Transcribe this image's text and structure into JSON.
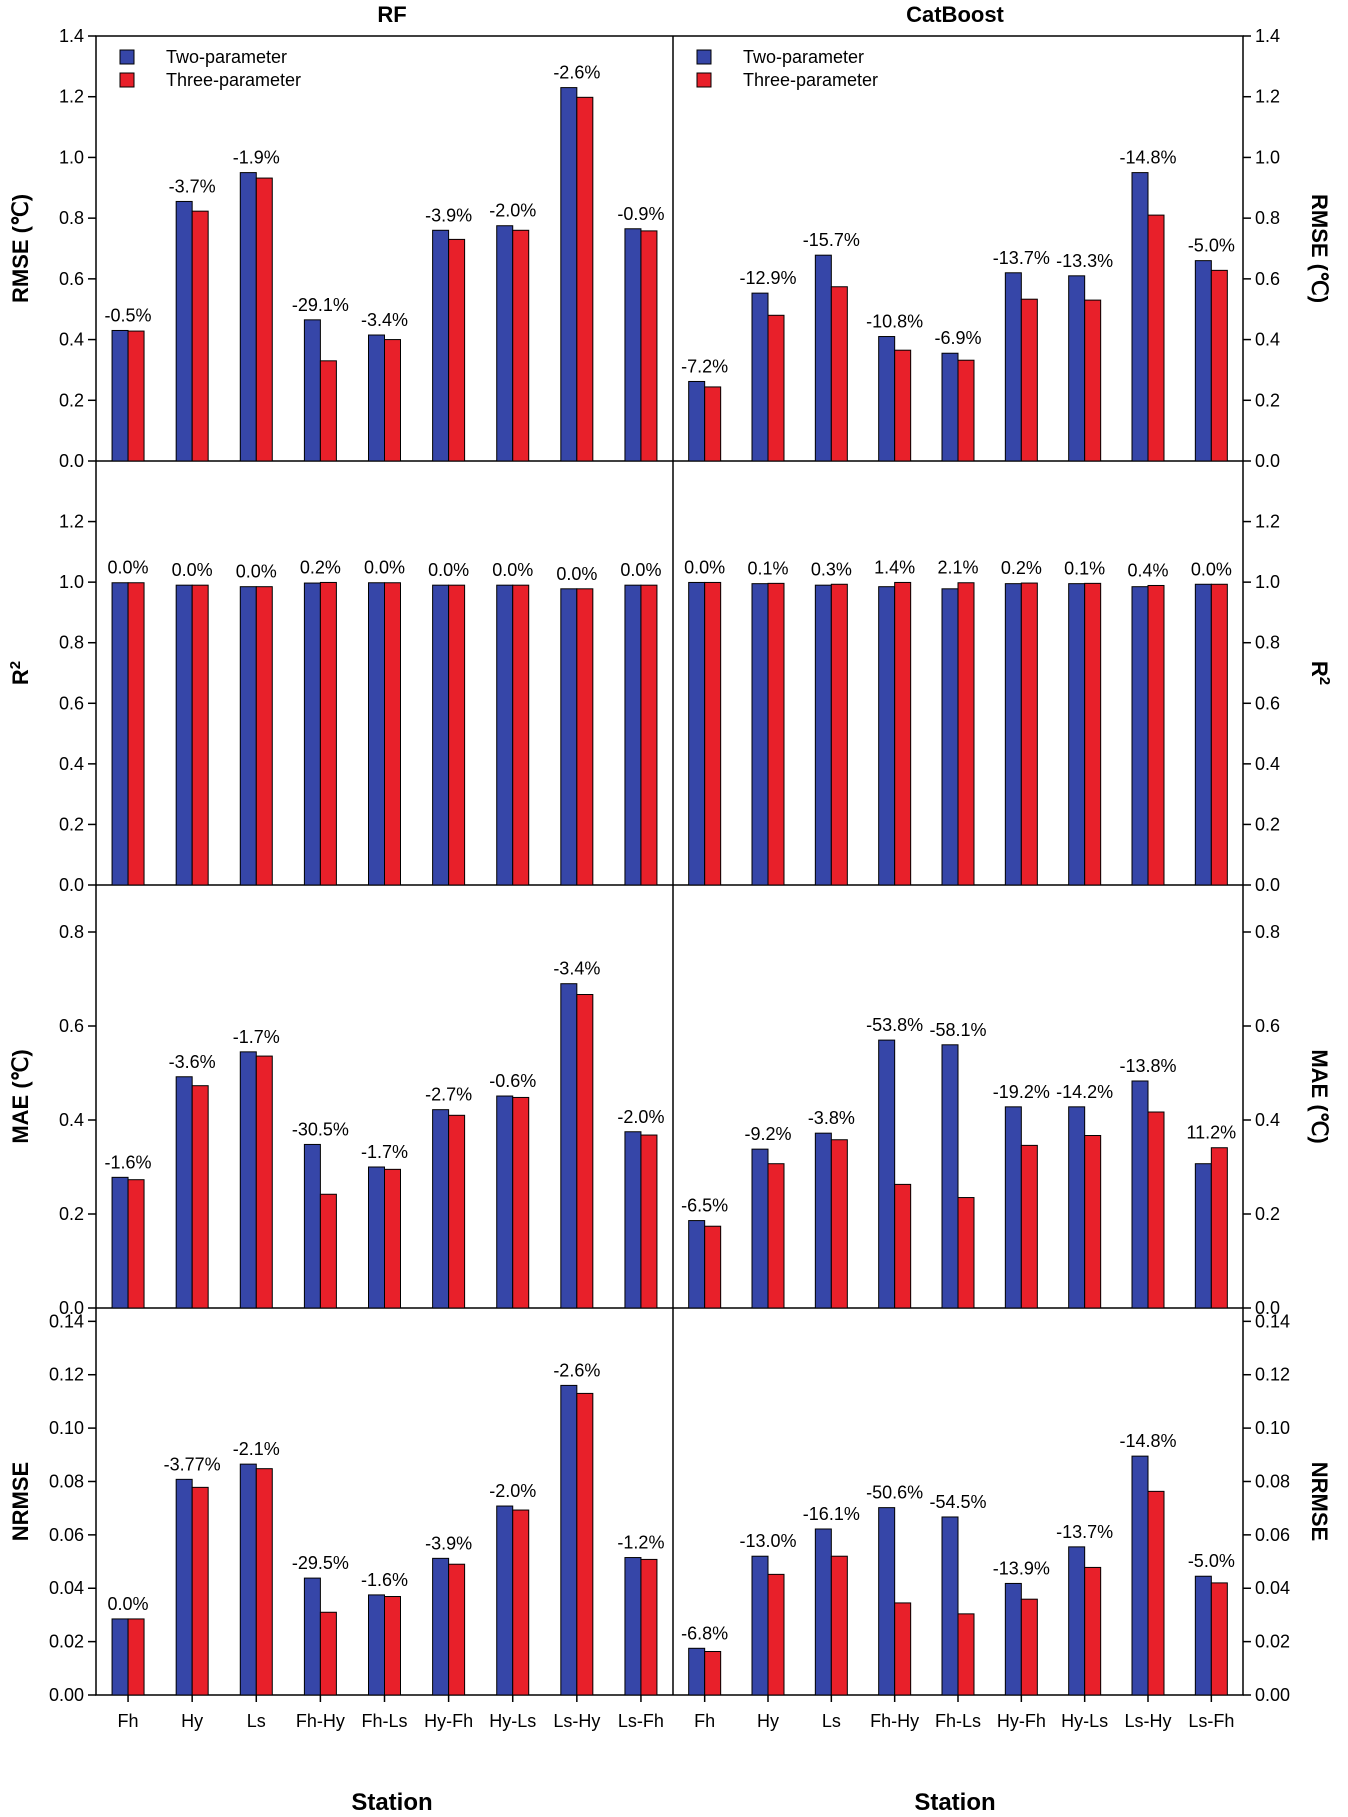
{
  "colors": {
    "two_param": "#3646a8",
    "three_param": "#e8202a",
    "bar_edge": "#000000"
  },
  "panel_titles": [
    "RF",
    "CatBoost"
  ],
  "x_title": "Station",
  "legend": [
    "Two-parameter",
    "Three-parameter"
  ],
  "chart_data": [
    {
      "type": "bar",
      "model": "RF",
      "ylabel": "RMSE (℃)",
      "ylim": [
        0,
        1.4
      ],
      "yticks": [
        "0.0",
        "0.2",
        "0.4",
        "0.6",
        "0.8",
        "1.0",
        "1.2",
        "1.4"
      ],
      "categories": [
        "Fh",
        "Hy",
        "Ls",
        "Fh-Hy",
        "Fh-Ls",
        "Hy-Fh",
        "Hy-Ls",
        "Ls-Hy",
        "Ls-Fh"
      ],
      "series": [
        {
          "name": "Two-parameter",
          "values": [
            0.43,
            0.855,
            0.95,
            0.465,
            0.415,
            0.76,
            0.775,
            1.23,
            0.765
          ]
        },
        {
          "name": "Three-parameter",
          "values": [
            0.428,
            0.823,
            0.932,
            0.33,
            0.4,
            0.73,
            0.76,
            1.198,
            0.758
          ]
        }
      ],
      "labels": [
        "-0.5%",
        "-3.7%",
        "-1.9%",
        "-29.1%",
        "-3.4%",
        "-3.9%",
        "-2.0%",
        "-2.6%",
        "-0.9%"
      ],
      "legend": "top-left"
    },
    {
      "type": "bar",
      "model": "CatBoost",
      "ylabel": "RMSE (℃)",
      "ylim": [
        0,
        1.4
      ],
      "yticks": [
        "0.0",
        "0.2",
        "0.4",
        "0.6",
        "0.8",
        "1.0",
        "1.2",
        "1.4"
      ],
      "categories": [
        "Fh",
        "Hy",
        "Ls",
        "Fh-Hy",
        "Fh-Ls",
        "Hy-Fh",
        "Hy-Ls",
        "Ls-Hy",
        "Ls-Fh"
      ],
      "series": [
        {
          "name": "Two-parameter",
          "values": [
            0.262,
            0.553,
            0.678,
            0.41,
            0.355,
            0.62,
            0.61,
            0.95,
            0.66
          ]
        },
        {
          "name": "Three-parameter",
          "values": [
            0.244,
            0.48,
            0.574,
            0.365,
            0.332,
            0.533,
            0.53,
            0.81,
            0.628
          ]
        }
      ],
      "labels": [
        "-7.2%",
        "-12.9%",
        "-15.7%",
        "-10.8%",
        "-6.9%",
        "-13.7%",
        "-13.3%",
        "-14.8%",
        "-5.0%"
      ],
      "legend": "top-left"
    },
    {
      "type": "bar",
      "model": "RF",
      "ylabel": "R2",
      "ylim": [
        0,
        1.4
      ],
      "yticks": [
        "0.0",
        "0.2",
        "0.4",
        "0.6",
        "0.8",
        "1.0",
        "1.2"
      ],
      "categories": [
        "Fh",
        "Hy",
        "Ls",
        "Fh-Hy",
        "Fh-Ls",
        "Hy-Fh",
        "Hy-Ls",
        "Ls-Hy",
        "Ls-Fh"
      ],
      "series": [
        {
          "name": "Two-parameter",
          "values": [
            0.998,
            0.99,
            0.985,
            0.997,
            0.998,
            0.99,
            0.99,
            0.978,
            0.99
          ]
        },
        {
          "name": "Three-parameter",
          "values": [
            0.998,
            0.99,
            0.985,
            0.999,
            0.998,
            0.99,
            0.99,
            0.978,
            0.99
          ]
        }
      ],
      "labels": [
        "0.0%",
        "0.0%",
        "0.0%",
        "0.2%",
        "0.0%",
        "0.0%",
        "0.0%",
        "0.0%",
        "0.0%"
      ]
    },
    {
      "type": "bar",
      "model": "CatBoost",
      "ylabel": "R2",
      "ylim": [
        0,
        1.4
      ],
      "yticks": [
        "0.0",
        "0.2",
        "0.4",
        "0.6",
        "0.8",
        "1.0",
        "1.2"
      ],
      "categories": [
        "Fh",
        "Hy",
        "Ls",
        "Fh-Hy",
        "Fh-Ls",
        "Hy-Fh",
        "Hy-Ls",
        "Ls-Hy",
        "Ls-Fh"
      ],
      "series": [
        {
          "name": "Two-parameter",
          "values": [
            0.999,
            0.995,
            0.99,
            0.985,
            0.978,
            0.995,
            0.995,
            0.985,
            0.993
          ]
        },
        {
          "name": "Three-parameter",
          "values": [
            0.999,
            0.996,
            0.993,
            0.999,
            0.998,
            0.997,
            0.996,
            0.989,
            0.993
          ]
        }
      ],
      "labels": [
        "0.0%",
        "0.1%",
        "0.3%",
        "1.4%",
        "2.1%",
        "0.2%",
        "0.1%",
        "0.4%",
        "0.0%"
      ]
    },
    {
      "type": "bar",
      "model": "RF",
      "ylabel": "MAE (℃)",
      "ylim": [
        0,
        0.9
      ],
      "yticks": [
        "0.0",
        "0.2",
        "0.4",
        "0.6",
        "0.8"
      ],
      "categories": [
        "Fh",
        "Hy",
        "Ls",
        "Fh-Hy",
        "Fh-Ls",
        "Hy-Fh",
        "Hy-Ls",
        "Ls-Hy",
        "Ls-Fh"
      ],
      "series": [
        {
          "name": "Two-parameter",
          "values": [
            0.278,
            0.492,
            0.545,
            0.348,
            0.3,
            0.422,
            0.451,
            0.69,
            0.375
          ]
        },
        {
          "name": "Three-parameter",
          "values": [
            0.273,
            0.473,
            0.536,
            0.242,
            0.295,
            0.41,
            0.448,
            0.667,
            0.368
          ]
        }
      ],
      "labels": [
        "-1.6%",
        "-3.6%",
        "-1.7%",
        "-30.5%",
        "-1.7%",
        "-2.7%",
        "-0.6%",
        "-3.4%",
        "-2.0%"
      ]
    },
    {
      "type": "bar",
      "model": "CatBoost",
      "ylabel": "MAE (℃)",
      "ylim": [
        0,
        0.9
      ],
      "yticks": [
        "0.0",
        "0.2",
        "0.4",
        "0.6",
        "0.8"
      ],
      "categories": [
        "Fh",
        "Hy",
        "Ls",
        "Fh-Hy",
        "Fh-Ls",
        "Hy-Fh",
        "Hy-Ls",
        "Ls-Hy",
        "Ls-Fh"
      ],
      "series": [
        {
          "name": "Two-parameter",
          "values": [
            0.186,
            0.338,
            0.372,
            0.57,
            0.56,
            0.428,
            0.428,
            0.483,
            0.307
          ]
        },
        {
          "name": "Three-parameter",
          "values": [
            0.174,
            0.307,
            0.358,
            0.263,
            0.235,
            0.346,
            0.367,
            0.417,
            0.341
          ]
        }
      ],
      "labels": [
        "-6.5%",
        "-9.2%",
        "-3.8%",
        "-53.8%",
        "-58.1%",
        "-19.2%",
        "-14.2%",
        "-13.8%",
        "11.2%"
      ]
    },
    {
      "type": "bar",
      "model": "RF",
      "ylabel": "NRMSE",
      "ylim": [
        0,
        0.145
      ],
      "yticks": [
        "0.00",
        "0.02",
        "0.04",
        "0.06",
        "0.08",
        "0.10",
        "0.12",
        "0.14"
      ],
      "categories": [
        "Fh",
        "Hy",
        "Ls",
        "Fh-Hy",
        "Fh-Ls",
        "Hy-Fh",
        "Hy-Ls",
        "Ls-Hy",
        "Ls-Fh"
      ],
      "series": [
        {
          "name": "Two-parameter",
          "values": [
            0.0285,
            0.0808,
            0.0865,
            0.0438,
            0.0375,
            0.0512,
            0.0708,
            0.116,
            0.0515
          ]
        },
        {
          "name": "Three-parameter",
          "values": [
            0.0285,
            0.0778,
            0.0848,
            0.031,
            0.0369,
            0.049,
            0.0693,
            0.113,
            0.0508
          ]
        }
      ],
      "labels": [
        "0.0%",
        "-3.77%",
        "-2.1%",
        "-29.5%",
        "-1.6%",
        "-3.9%",
        "-2.0%",
        "-2.6%",
        "-1.2%"
      ]
    },
    {
      "type": "bar",
      "model": "CatBoost",
      "ylabel": "NRMSE",
      "ylim": [
        0,
        0.145
      ],
      "yticks": [
        "0.00",
        "0.02",
        "0.04",
        "0.06",
        "0.08",
        "0.10",
        "0.12",
        "0.14"
      ],
      "categories": [
        "Fh",
        "Hy",
        "Ls",
        "Fh-Hy",
        "Fh-Ls",
        "Hy-Fh",
        "Hy-Ls",
        "Ls-Hy",
        "Ls-Fh"
      ],
      "series": [
        {
          "name": "Two-parameter",
          "values": [
            0.0175,
            0.052,
            0.0622,
            0.0702,
            0.0667,
            0.0418,
            0.0555,
            0.0895,
            0.0445
          ]
        },
        {
          "name": "Three-parameter",
          "values": [
            0.0163,
            0.0452,
            0.052,
            0.0345,
            0.0304,
            0.0359,
            0.0478,
            0.0763,
            0.042
          ]
        }
      ],
      "labels": [
        "-6.8%",
        "-13.0%",
        "-16.1%",
        "-50.6%",
        "-54.5%",
        "-13.9%",
        "-13.7%",
        "-14.8%",
        "-5.0%"
      ]
    }
  ]
}
